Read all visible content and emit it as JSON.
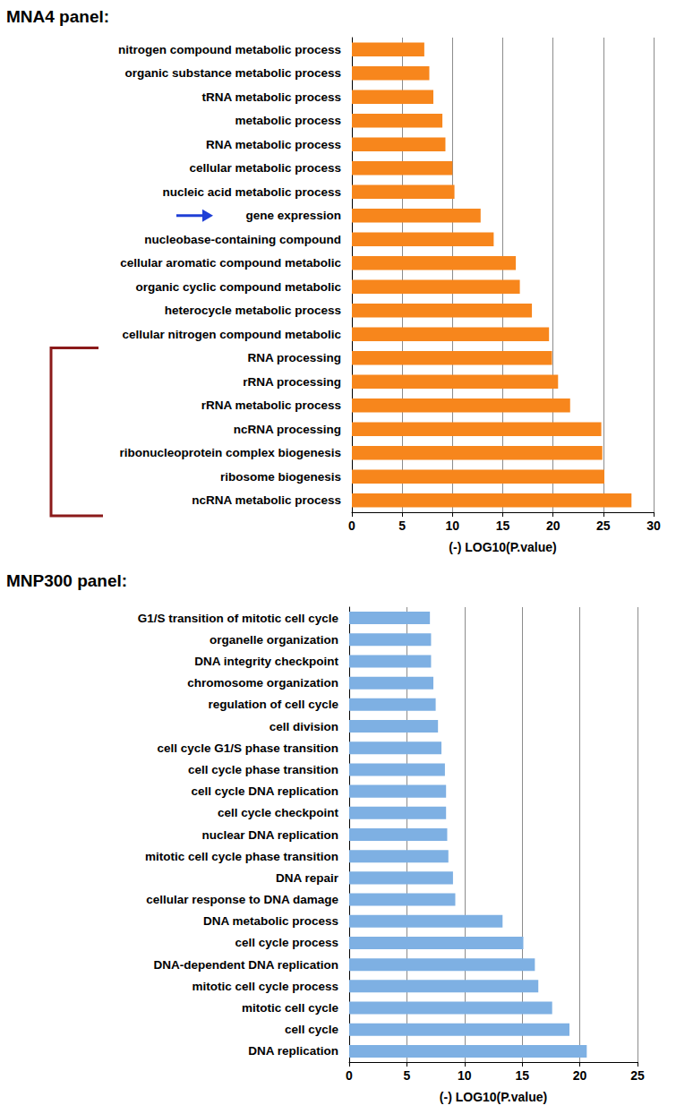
{
  "chart_data": [
    {
      "type": "bar",
      "title": "MNA4 panel:",
      "orientation": "horizontal",
      "grid": true,
      "xlabel": "(-) LOG10(P.value)",
      "categories": [
        "nitrogen compound metabolic process",
        "organic substance metabolic process",
        "tRNA metabolic process",
        "metabolic process",
        "RNA metabolic process",
        "cellular metabolic process",
        "nucleic acid metabolic process",
        "gene expression",
        "nucleobase-containing compound",
        "cellular aromatic compound metabolic",
        "organic cyclic compound metabolic",
        "heterocycle metabolic process",
        "cellular nitrogen compound metabolic",
        "RNA processing",
        "rRNA processing",
        "rRNA metabolic process",
        "ncRNA processing",
        "ribonucleoprotein complex biogenesis",
        "ribosome biogenesis",
        "ncRNA metabolic process"
      ],
      "values": [
        7.2,
        7.7,
        8.1,
        9.0,
        9.3,
        10.0,
        10.2,
        12.8,
        14.1,
        16.3,
        16.7,
        17.9,
        19.6,
        19.9,
        20.5,
        21.7,
        24.8,
        24.9,
        25.1,
        27.8
      ],
      "color": "#f7861c",
      "xlim": [
        0,
        30
      ],
      "xticks": [
        0,
        5,
        10,
        15,
        20,
        25,
        30
      ]
    },
    {
      "type": "bar",
      "title": "MNP300 panel:",
      "orientation": "horizontal",
      "grid": true,
      "xlabel": "(-) LOG10(P.value)",
      "categories": [
        "G1/S transition of mitotic cell cycle",
        "organelle organization",
        "DNA integrity checkpoint",
        "chromosome organization",
        "regulation of cell cycle",
        "cell division",
        "cell cycle G1/S phase transition",
        "cell cycle phase transition",
        "cell cycle DNA replication",
        "cell cycle checkpoint",
        "nuclear DNA replication",
        "mitotic cell cycle phase transition",
        "DNA repair",
        "cellular response to DNA damage",
        "DNA metabolic process",
        "cell cycle process",
        "DNA-dependent DNA replication",
        "mitotic cell cycle process",
        "mitotic cell cycle",
        "cell cycle",
        "DNA replication"
      ],
      "values": [
        7.0,
        7.1,
        7.1,
        7.3,
        7.5,
        7.7,
        8.0,
        8.3,
        8.4,
        8.4,
        8.5,
        8.6,
        9.0,
        9.2,
        13.3,
        15.1,
        16.1,
        16.4,
        17.6,
        19.1,
        20.6
      ],
      "color": "#7eb0e3",
      "xlim": [
        0,
        25
      ],
      "xticks": [
        0,
        5,
        10,
        15,
        20,
        25
      ]
    }
  ]
}
